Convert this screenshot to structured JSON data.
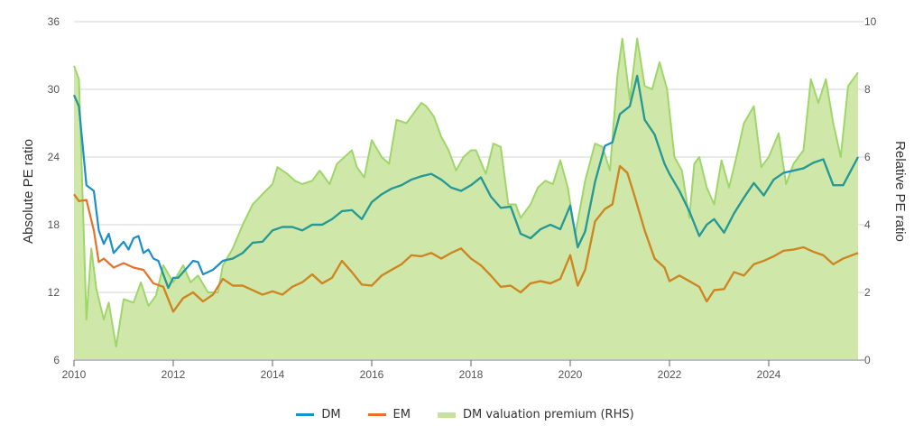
{
  "chart_data": {
    "type": "line",
    "title": "",
    "xlabel": "",
    "ylabel": "Absolute PE ratio",
    "y2label": "Relative PE ratio",
    "xlim": [
      2010.0,
      2025.8
    ],
    "ylim": [
      6,
      36
    ],
    "y2lim": [
      0,
      10
    ],
    "x_ticks": [
      "2010",
      "2012",
      "2014",
      "2016",
      "2018",
      "2020",
      "2022",
      "2024"
    ],
    "y_ticks": [
      "6",
      "12",
      "18",
      "24",
      "30",
      "36"
    ],
    "y2_ticks": [
      "0",
      "2",
      "4",
      "6",
      "8",
      "10"
    ],
    "grid": true,
    "legend_position": "bottom-center",
    "colors": {
      "DM": "#1a8fc9",
      "EM": "#e8702a",
      "premium_fill": "#cfe8a9",
      "premium_line": "#9fd66a",
      "overlap": "#2a9a8a",
      "overlap_em": "#c98a20"
    },
    "series": [
      {
        "name": "DM",
        "axis": "left",
        "x": [
          2010.0,
          2010.1,
          2010.25,
          2010.4,
          2010.5,
          2010.6,
          2010.7,
          2010.8,
          2010.9,
          2011.0,
          2011.1,
          2011.2,
          2011.3,
          2011.4,
          2011.5,
          2011.6,
          2011.7,
          2011.8,
          2011.9,
          2012.0,
          2012.1,
          2012.2,
          2012.3,
          2012.4,
          2012.5,
          2012.6,
          2012.8,
          2013.0,
          2013.2,
          2013.4,
          2013.6,
          2013.8,
          2014.0,
          2014.2,
          2014.4,
          2014.6,
          2014.8,
          2015.0,
          2015.2,
          2015.4,
          2015.6,
          2015.8,
          2016.0,
          2016.2,
          2016.4,
          2016.6,
          2016.8,
          2017.0,
          2017.2,
          2017.4,
          2017.6,
          2017.8,
          2018.0,
          2018.2,
          2018.4,
          2018.6,
          2018.8,
          2019.0,
          2019.2,
          2019.4,
          2019.6,
          2019.8,
          2020.0,
          2020.15,
          2020.3,
          2020.5,
          2020.7,
          2020.85,
          2021.0,
          2021.2,
          2021.35,
          2021.5,
          2021.7,
          2021.9,
          2022.0,
          2022.2,
          2022.4,
          2022.6,
          2022.75,
          2022.9,
          2023.1,
          2023.3,
          2023.5,
          2023.7,
          2023.9,
          2024.1,
          2024.3,
          2024.5,
          2024.7,
          2024.9,
          2025.1,
          2025.3,
          2025.5,
          2025.8
        ],
        "values": [
          29.5,
          28.5,
          21.5,
          21.0,
          17.5,
          16.3,
          17.2,
          15.5,
          16.0,
          16.5,
          15.8,
          16.8,
          17.0,
          15.5,
          15.8,
          15.0,
          14.8,
          13.6,
          12.4,
          13.3,
          13.3,
          13.8,
          14.3,
          14.8,
          14.7,
          13.6,
          14.0,
          14.8,
          15.0,
          15.5,
          16.4,
          16.5,
          17.5,
          17.8,
          17.8,
          17.5,
          18.0,
          18.0,
          18.5,
          19.2,
          19.3,
          18.5,
          20.0,
          20.7,
          21.2,
          21.5,
          22.0,
          22.3,
          22.5,
          22.0,
          21.3,
          21.0,
          21.5,
          22.2,
          20.5,
          19.5,
          19.6,
          17.2,
          16.8,
          17.6,
          18.0,
          17.6,
          19.7,
          16.0,
          17.4,
          21.8,
          25.0,
          25.3,
          27.8,
          28.5,
          31.2,
          27.3,
          26.0,
          23.4,
          22.5,
          21.0,
          19.2,
          17.0,
          18.0,
          18.5,
          17.3,
          19.0,
          20.4,
          21.7,
          20.6,
          22.0,
          22.6,
          22.8,
          23.0,
          23.5,
          23.8,
          21.5,
          21.5,
          24.0
        ]
      },
      {
        "name": "EM",
        "axis": "left",
        "x": [
          2010.0,
          2010.1,
          2010.25,
          2010.4,
          2010.5,
          2010.6,
          2010.8,
          2011.0,
          2011.2,
          2011.4,
          2011.6,
          2011.8,
          2012.0,
          2012.2,
          2012.4,
          2012.6,
          2012.8,
          2013.0,
          2013.2,
          2013.4,
          2013.6,
          2013.8,
          2014.0,
          2014.2,
          2014.4,
          2014.6,
          2014.8,
          2015.0,
          2015.2,
          2015.4,
          2015.6,
          2015.8,
          2016.0,
          2016.2,
          2016.4,
          2016.6,
          2016.8,
          2017.0,
          2017.2,
          2017.4,
          2017.6,
          2017.8,
          2018.0,
          2018.2,
          2018.4,
          2018.6,
          2018.8,
          2019.0,
          2019.2,
          2019.4,
          2019.6,
          2019.8,
          2020.0,
          2020.15,
          2020.3,
          2020.5,
          2020.7,
          2020.85,
          2021.0,
          2021.15,
          2021.3,
          2021.5,
          2021.7,
          2021.9,
          2022.0,
          2022.2,
          2022.4,
          2022.6,
          2022.75,
          2022.9,
          2023.1,
          2023.3,
          2023.5,
          2023.7,
          2023.9,
          2024.1,
          2024.3,
          2024.5,
          2024.7,
          2024.9,
          2025.1,
          2025.3,
          2025.5,
          2025.8
        ],
        "values": [
          20.7,
          20.1,
          20.2,
          17.5,
          14.7,
          15.0,
          14.2,
          14.6,
          14.2,
          14.0,
          12.8,
          12.5,
          10.3,
          11.5,
          12.0,
          11.2,
          11.8,
          13.2,
          12.6,
          12.6,
          12.2,
          11.8,
          12.1,
          11.8,
          12.5,
          12.9,
          13.6,
          12.8,
          13.3,
          14.8,
          13.8,
          12.7,
          12.6,
          13.5,
          14.0,
          14.5,
          15.3,
          15.2,
          15.5,
          15.0,
          15.5,
          15.9,
          15.0,
          14.4,
          13.5,
          12.5,
          12.6,
          12.0,
          12.8,
          13.0,
          12.8,
          13.2,
          15.3,
          12.6,
          14.0,
          18.3,
          19.4,
          19.8,
          23.2,
          22.6,
          20.5,
          17.5,
          15.0,
          14.2,
          13.0,
          13.5,
          13.0,
          12.5,
          11.2,
          12.2,
          12.3,
          13.8,
          13.5,
          14.5,
          14.8,
          15.2,
          15.7,
          15.8,
          16.0,
          15.6,
          15.3,
          14.5,
          15.0,
          15.5
        ]
      },
      {
        "name": "DM valuation premium (RHS)",
        "axis": "right",
        "type": "area",
        "x": [
          2010.0,
          2010.1,
          2010.25,
          2010.35,
          2010.45,
          2010.6,
          2010.7,
          2010.85,
          2011.0,
          2011.2,
          2011.35,
          2011.5,
          2011.65,
          2011.8,
          2012.0,
          2012.2,
          2012.35,
          2012.5,
          2012.7,
          2012.9,
          2013.0,
          2013.2,
          2013.4,
          2013.6,
          2013.8,
          2014.0,
          2014.1,
          2014.3,
          2014.45,
          2014.6,
          2014.8,
          2014.95,
          2015.15,
          2015.3,
          2015.45,
          2015.6,
          2015.7,
          2015.85,
          2016.0,
          2016.2,
          2016.35,
          2016.5,
          2016.7,
          2016.85,
          2017.0,
          2017.1,
          2017.25,
          2017.4,
          2017.55,
          2017.7,
          2017.85,
          2018.0,
          2018.1,
          2018.3,
          2018.45,
          2018.6,
          2018.75,
          2018.9,
          2019.0,
          2019.2,
          2019.35,
          2019.5,
          2019.65,
          2019.8,
          2019.95,
          2020.1,
          2020.3,
          2020.5,
          2020.65,
          2020.8,
          2020.95,
          2021.05,
          2021.2,
          2021.35,
          2021.5,
          2021.65,
          2021.8,
          2021.95,
          2022.1,
          2022.25,
          2022.4,
          2022.5,
          2022.6,
          2022.75,
          2022.9,
          2023.05,
          2023.2,
          2023.35,
          2023.5,
          2023.7,
          2023.85,
          2024.0,
          2024.2,
          2024.35,
          2024.5,
          2024.7,
          2024.85,
          2025.0,
          2025.15,
          2025.3,
          2025.45,
          2025.6,
          2025.8
        ],
        "values": [
          8.7,
          8.3,
          1.2,
          3.3,
          2.1,
          1.2,
          1.7,
          0.4,
          1.8,
          1.7,
          2.3,
          1.6,
          1.9,
          2.8,
          2.3,
          2.8,
          2.3,
          2.5,
          2.0,
          2.0,
          2.8,
          3.3,
          4.0,
          4.6,
          4.9,
          5.2,
          5.7,
          5.5,
          5.3,
          5.2,
          5.3,
          5.6,
          5.2,
          5.8,
          6.0,
          6.2,
          5.7,
          5.4,
          6.5,
          6.0,
          5.8,
          7.1,
          7.0,
          7.3,
          7.6,
          7.5,
          7.2,
          6.6,
          6.2,
          5.6,
          6.0,
          6.2,
          6.2,
          5.5,
          6.4,
          6.3,
          4.6,
          4.6,
          4.2,
          4.6,
          5.1,
          5.3,
          5.2,
          5.9,
          5.1,
          3.7,
          5.3,
          6.4,
          6.3,
          5.6,
          8.4,
          9.5,
          7.7,
          9.5,
          8.1,
          8.0,
          8.8,
          8.0,
          6.0,
          5.6,
          4.2,
          5.8,
          6.0,
          5.1,
          4.6,
          5.9,
          5.1,
          6.0,
          7.0,
          7.5,
          5.7,
          6.0,
          6.7,
          5.2,
          5.8,
          6.2,
          8.3,
          7.6,
          8.3,
          7.0,
          6.0,
          8.1,
          8.5
        ]
      }
    ]
  },
  "legend": {
    "items": [
      {
        "label": "DM",
        "color": "#1a8fc9",
        "kind": "line"
      },
      {
        "label": "EM",
        "color": "#e8702a",
        "kind": "line"
      },
      {
        "label": "DM valuation premium (RHS)",
        "color": "#c5e39a",
        "kind": "area"
      }
    ]
  }
}
